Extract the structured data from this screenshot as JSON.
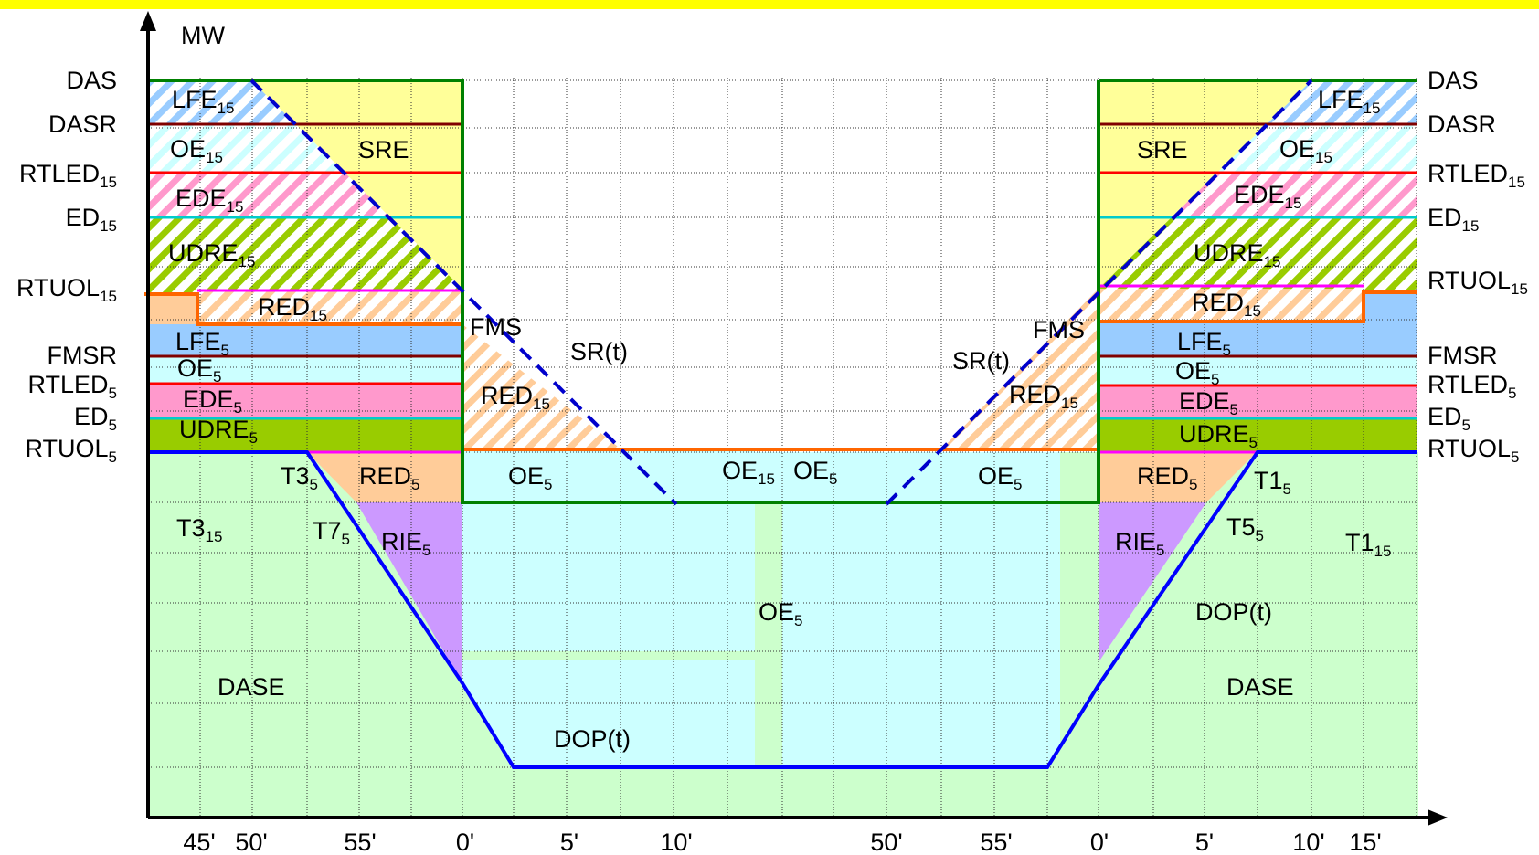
{
  "colors": {
    "topbar": "#ffff00",
    "dase": "#ccffcc",
    "oe": "#ccffff",
    "red": "#ffcc99",
    "rie": "#cc99ff",
    "lfe": "#99ccff",
    "ede": "#ff99cc",
    "udre": "#99cc00",
    "sre": "#ffff99",
    "das_line": "#008000",
    "dasr_line": "#800000",
    "rtled_line": "#ff0000",
    "ed_line": "#00cccc",
    "rtuol_line": "#ff00ff",
    "fms_line": "#ff6600",
    "dop_line": "#0000ff",
    "sr_line": "#0000cc"
  },
  "axis": {
    "y_title": "MW",
    "x_ticks": [
      "45'",
      "50'",
      "55'",
      "0'",
      "5'",
      "10'",
      "50'",
      "55'",
      "0'",
      "5'",
      "10'",
      "15'"
    ]
  },
  "left_labels": {
    "das": "DAS",
    "dasr": "DASR",
    "rtled15": {
      "base": "RTLED",
      "sub": "15"
    },
    "ed15": {
      "base": "ED",
      "sub": "15"
    },
    "rtuol15": {
      "base": "RTUOL",
      "sub": "15"
    },
    "fmsr": "FMSR",
    "rtled5": {
      "base": "RTLED",
      "sub": "5"
    },
    "ed5": {
      "base": "ED",
      "sub": "5"
    },
    "rtuol5": {
      "base": "RTUOL",
      "sub": "5"
    }
  },
  "right_labels": {
    "das": "DAS",
    "dasr": "DASR",
    "rtled15": {
      "base": "RTLED",
      "sub": "15"
    },
    "ed15": {
      "base": "ED",
      "sub": "15"
    },
    "rtuol15": {
      "base": "RTUOL",
      "sub": "15"
    },
    "fmsr": "FMSR",
    "rtled5": {
      "base": "RTLED",
      "sub": "5"
    },
    "ed5": {
      "base": "ED",
      "sub": "5"
    },
    "rtuol5": {
      "base": "RTUOL",
      "sub": "5"
    }
  },
  "regions": {
    "lfe15_l": {
      "base": "LFE",
      "sub": "15"
    },
    "oe15_l": {
      "base": "OE",
      "sub": "15"
    },
    "sre_l": "SRE",
    "ede15_l": {
      "base": "EDE",
      "sub": "15"
    },
    "udre15_l": {
      "base": "UDRE",
      "sub": "15"
    },
    "red15_l": {
      "base": "RED",
      "sub": "15"
    },
    "lfe5_l": {
      "base": "LFE",
      "sub": "5"
    },
    "oe5_l": {
      "base": "OE",
      "sub": "5"
    },
    "ede5_l": {
      "base": "EDE",
      "sub": "5"
    },
    "udre5_l": {
      "base": "UDRE",
      "sub": "5"
    },
    "t3_5": {
      "base": "T3",
      "sub": "5"
    },
    "red5_l": {
      "base": "RED",
      "sub": "5"
    },
    "t3_15": {
      "base": "T3",
      "sub": "15"
    },
    "t7_5": {
      "base": "T7",
      "sub": "5"
    },
    "rie5_l": {
      "base": "RIE",
      "sub": "5"
    },
    "dase_l": "DASE",
    "fms_l": "FMS",
    "sr_l": "SR(t)",
    "red15_ml": {
      "base": "RED",
      "sub": "15"
    },
    "oe5_ml": {
      "base": "OE",
      "sub": "5"
    },
    "oe15_m": {
      "base": "OE",
      "sub": "15"
    },
    "oe5_mr": {
      "base": "OE",
      "sub": "5"
    },
    "oe5_center": {
      "base": "OE",
      "sub": "5"
    },
    "dop_l": "DOP(t)",
    "oe5_r2": {
      "base": "OE",
      "sub": "5"
    },
    "sr_r": "SR(t)",
    "fms_r": "FMS",
    "red15_mr": {
      "base": "RED",
      "sub": "15"
    },
    "lfe15_r": {
      "base": "LFE",
      "sub": "15"
    },
    "sre_r": "SRE",
    "oe15_r": {
      "base": "OE",
      "sub": "15"
    },
    "ede15_r": {
      "base": "EDE",
      "sub": "15"
    },
    "udre15_r": {
      "base": "UDRE",
      "sub": "15"
    },
    "red15_r": {
      "base": "RED",
      "sub": "15"
    },
    "lfe5_r": {
      "base": "LFE",
      "sub": "5"
    },
    "oe5_r": {
      "base": "OE",
      "sub": "5"
    },
    "ede5_r": {
      "base": "EDE",
      "sub": "5"
    },
    "udre5_r": {
      "base": "UDRE",
      "sub": "5"
    },
    "red5_r": {
      "base": "RED",
      "sub": "5"
    },
    "t1_5": {
      "base": "T1",
      "sub": "5"
    },
    "rie5_r": {
      "base": "RIE",
      "sub": "5"
    },
    "t5_5": {
      "base": "T5",
      "sub": "5"
    },
    "t1_15": {
      "base": "T1",
      "sub": "15"
    },
    "dop_r": "DOP(t)",
    "dase_r": "DASE"
  }
}
